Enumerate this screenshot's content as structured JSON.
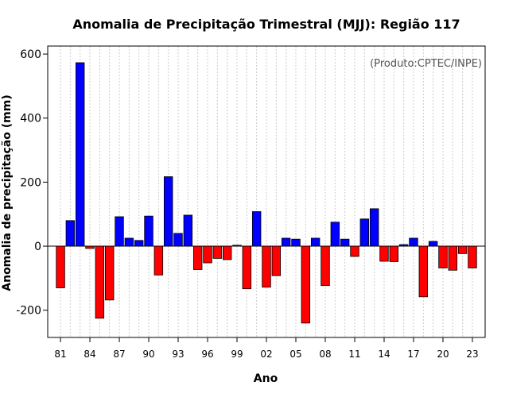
{
  "chart_data": {
    "type": "bar",
    "title": "Anomalia de Precipitação Trimestral (MJJ): Região 117",
    "xlabel": "Ano",
    "ylabel": "Anomalia de precipitação (mm)",
    "annotation": "(Produto:CPTEC/INPE)",
    "ylim": [
      -285,
      625
    ],
    "yticks": [
      -200,
      0,
      200,
      400,
      600
    ],
    "ytick_labels": [
      "-200",
      "0",
      "200",
      "400",
      "600"
    ],
    "xtick_years": [
      1981,
      1984,
      1987,
      1990,
      1993,
      1996,
      1999,
      2002,
      2005,
      2008,
      2011,
      2014,
      2017,
      2020,
      2023
    ],
    "xtick_labels": [
      "81",
      "84",
      "87",
      "90",
      "93",
      "96",
      "99",
      "02",
      "05",
      "08",
      "11",
      "14",
      "17",
      "20",
      "23"
    ],
    "years": [
      1981,
      1982,
      1983,
      1984,
      1985,
      1986,
      1987,
      1988,
      1989,
      1990,
      1991,
      1992,
      1993,
      1994,
      1995,
      1996,
      1997,
      1998,
      1999,
      2000,
      2001,
      2002,
      2003,
      2004,
      2005,
      2006,
      2007,
      2008,
      2009,
      2010,
      2011,
      2012,
      2013,
      2014,
      2015,
      2016,
      2017,
      2018,
      2019,
      2020,
      2021,
      2022,
      2023
    ],
    "values": [
      -130,
      80,
      573,
      -7,
      -225,
      -168,
      92,
      25,
      18,
      94,
      -90,
      217,
      40,
      97,
      -73,
      -52,
      -38,
      -42,
      3,
      -133,
      108,
      -128,
      -92,
      25,
      22,
      -240,
      25,
      -123,
      75,
      22,
      -32,
      85,
      117,
      -47,
      -48,
      5,
      25,
      -158,
      15,
      -68,
      -75,
      -23,
      -68
    ],
    "grid": true,
    "positive_color": "#0000ff",
    "negative_color": "#ff0000",
    "grid_color": "#cccccc"
  }
}
